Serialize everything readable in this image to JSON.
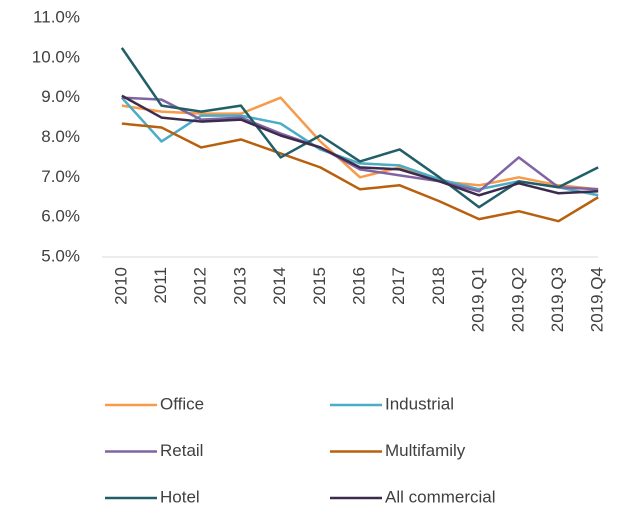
{
  "chart_data": {
    "type": "line",
    "categories": [
      "2010",
      "2011",
      "2012",
      "2013",
      "2014",
      "2015",
      "2016",
      "2017",
      "2018",
      "2019.Q1",
      "2019.Q2",
      "2019.Q3",
      "2019.Q4"
    ],
    "series": [
      {
        "name": "Office",
        "color": "#f79a4a",
        "values": [
          8.8,
          8.65,
          8.6,
          8.6,
          9.0,
          7.9,
          7.0,
          7.25,
          6.9,
          6.8,
          7.0,
          6.8,
          6.7
        ]
      },
      {
        "name": "Industrial",
        "color": "#4bacc6",
        "values": [
          9.0,
          7.9,
          8.55,
          8.55,
          8.35,
          7.7,
          7.35,
          7.3,
          6.95,
          6.7,
          6.9,
          6.75,
          6.55
        ]
      },
      {
        "name": "Retail",
        "color": "#8064a2",
        "values": [
          9.0,
          8.95,
          8.45,
          8.5,
          8.1,
          7.75,
          7.2,
          7.05,
          6.9,
          6.65,
          7.5,
          6.75,
          6.7
        ]
      },
      {
        "name": "Multifamily",
        "color": "#b8600e",
        "values": [
          8.35,
          8.25,
          7.75,
          7.95,
          7.6,
          7.25,
          6.7,
          6.8,
          6.4,
          5.95,
          6.15,
          5.9,
          6.5
        ]
      },
      {
        "name": "Hotel",
        "color": "#215e68",
        "values": [
          10.25,
          8.8,
          8.65,
          8.8,
          7.5,
          8.05,
          7.4,
          7.7,
          7.0,
          6.25,
          6.9,
          6.75,
          7.25
        ]
      },
      {
        "name": "All commercial",
        "color": "#3d2b4e",
        "values": [
          9.05,
          8.5,
          8.4,
          8.45,
          8.05,
          7.75,
          7.25,
          7.2,
          6.9,
          6.55,
          6.85,
          6.6,
          6.65
        ]
      }
    ],
    "ylim": [
      5,
      11
    ],
    "yticks": [
      {
        "value": 5,
        "label": "5.0%"
      },
      {
        "value": 6,
        "label": "6.0%"
      },
      {
        "value": 7,
        "label": "7.0%"
      },
      {
        "value": 8,
        "label": "8.0%"
      },
      {
        "value": 9,
        "label": "9.0%"
      },
      {
        "value": 10,
        "label": "10.0%"
      },
      {
        "value": 11,
        "label": "11.0%"
      }
    ],
    "legend": "bottom"
  }
}
